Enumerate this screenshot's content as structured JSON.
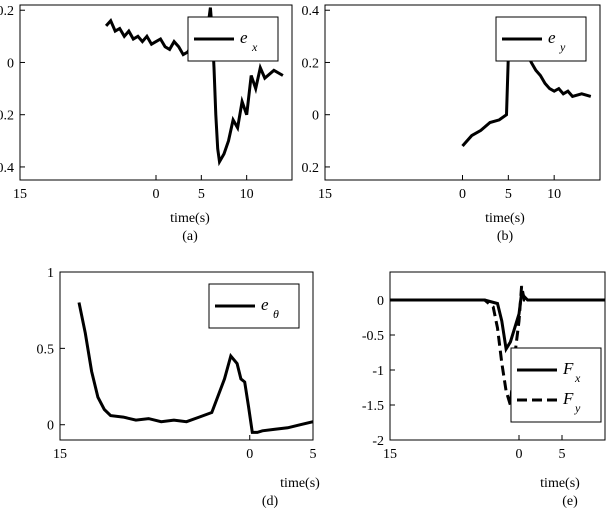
{
  "chart_data": [
    {
      "id": "a",
      "type": "line",
      "caption": "(a)",
      "xlabel": "time(s)",
      "ylabel": "",
      "xlim": [
        -15,
        15
      ],
      "ylim": [
        -0.45,
        0.22
      ],
      "xticks": [
        -15,
        0,
        5,
        10
      ],
      "xtick_labels": [
        "15",
        "0",
        "5",
        "10"
      ],
      "yticks": [
        0.2,
        0,
        -0.2,
        -0.4
      ],
      "ytick_labels": [
        "0.2",
        "0",
        "0.2",
        "0.4"
      ],
      "legend": {
        "position": "top-right",
        "entries": [
          {
            "label": "e",
            "sub": "x"
          }
        ]
      },
      "series": [
        {
          "name": "e_x",
          "color": "#000000",
          "style": "solid",
          "x": [
            -5.5,
            -5,
            -4.5,
            -4,
            -3.5,
            -3,
            -2.5,
            -2,
            -1.5,
            -1,
            -0.5,
            0,
            0.5,
            1,
            1.5,
            2,
            2.5,
            3,
            3.5,
            4,
            4.5,
            5,
            5.5,
            6,
            6.2,
            6.4,
            6.6,
            6.8,
            7,
            7.5,
            8,
            8.5,
            9,
            9.5,
            10,
            10.5,
            11,
            11.5,
            12,
            13,
            14
          ],
          "y": [
            0.14,
            0.16,
            0.12,
            0.13,
            0.1,
            0.12,
            0.09,
            0.1,
            0.08,
            0.1,
            0.07,
            0.08,
            0.09,
            0.06,
            0.05,
            0.08,
            0.06,
            0.03,
            0.04,
            0.07,
            0.09,
            0.11,
            0.08,
            0.21,
            0.12,
            -0.02,
            -0.2,
            -0.33,
            -0.38,
            -0.35,
            -0.3,
            -0.22,
            -0.25,
            -0.15,
            -0.2,
            -0.05,
            -0.1,
            -0.02,
            -0.06,
            -0.03,
            -0.05
          ]
        }
      ]
    },
    {
      "id": "b",
      "type": "line",
      "caption": "(b)",
      "xlabel": "time(s)",
      "ylabel": "",
      "xlim": [
        -15,
        15
      ],
      "ylim": [
        -0.25,
        0.42
      ],
      "xticks": [
        -15,
        0,
        5,
        10
      ],
      "xtick_labels": [
        "15",
        "0",
        "5",
        "10"
      ],
      "yticks": [
        0.4,
        0.2,
        0,
        -0.2
      ],
      "ytick_labels": [
        "0.4",
        "0.2",
        "0",
        "0.2"
      ],
      "legend": {
        "position": "top-right",
        "entries": [
          {
            "label": "e",
            "sub": "y"
          }
        ]
      },
      "series": [
        {
          "name": "e_y",
          "color": "#000000",
          "style": "solid",
          "x": [
            0,
            1,
            2,
            3,
            4,
            4.8,
            5,
            5.5,
            6,
            6.5,
            7,
            7.5,
            8,
            8.5,
            9,
            9.5,
            10,
            10.5,
            11,
            11.5,
            12,
            13,
            14
          ],
          "y": [
            -0.12,
            -0.08,
            -0.06,
            -0.03,
            -0.02,
            0.0,
            0.22,
            0.28,
            0.26,
            0.22,
            0.24,
            0.2,
            0.17,
            0.15,
            0.12,
            0.1,
            0.09,
            0.1,
            0.08,
            0.09,
            0.07,
            0.08,
            0.07
          ]
        }
      ]
    },
    {
      "id": "d",
      "type": "line",
      "caption": "(d)",
      "xlabel": "time(s)",
      "ylabel": "",
      "xlim": [
        -15,
        5
      ],
      "ylim": [
        -0.1,
        1.0
      ],
      "xticks": [
        -15,
        0,
        5
      ],
      "xtick_labels": [
        "15",
        "0",
        "5"
      ],
      "yticks": [
        1,
        0.5,
        0
      ],
      "ytick_labels": [
        "1",
        "0.5",
        "0"
      ],
      "legend": {
        "position": "top-right",
        "entries": [
          {
            "label": "e",
            "sub": "θ"
          }
        ]
      },
      "series": [
        {
          "name": "e_theta",
          "color": "#000000",
          "style": "solid",
          "x": [
            -13.5,
            -13,
            -12.5,
            -12,
            -11.5,
            -11,
            -10,
            -9,
            -8,
            -7,
            -6,
            -5,
            -4,
            -3,
            -2,
            -1.5,
            -1,
            -0.7,
            -0.4,
            -0.1,
            0.2,
            0.6,
            1,
            2,
            3,
            4,
            5
          ],
          "y": [
            0.8,
            0.6,
            0.35,
            0.18,
            0.1,
            0.06,
            0.05,
            0.03,
            0.04,
            0.02,
            0.03,
            0.02,
            0.05,
            0.08,
            0.3,
            0.45,
            0.4,
            0.3,
            0.28,
            0.12,
            -0.05,
            -0.05,
            -0.04,
            -0.03,
            -0.02,
            0.0,
            0.02
          ]
        }
      ]
    },
    {
      "id": "e",
      "type": "line",
      "caption": "(e)",
      "xlabel": "time(s)",
      "ylabel": "",
      "xlim": [
        -15,
        10
      ],
      "ylim": [
        -2,
        0.4
      ],
      "xticks": [
        -15,
        0,
        5
      ],
      "xtick_labels": [
        "15",
        "0",
        "5"
      ],
      "yticks": [
        0,
        -0.5,
        -1,
        -1.5,
        -2
      ],
      "ytick_labels": [
        "0",
        "-0.5",
        "-1",
        "-1.5",
        "-2"
      ],
      "legend": {
        "position": "bottom-right",
        "entries": [
          {
            "label": "F",
            "sub": "x"
          },
          {
            "label": "F",
            "sub": "y"
          }
        ]
      },
      "series": [
        {
          "name": "F_x",
          "color": "#000000",
          "style": "solid",
          "x": [
            -15,
            -4,
            -2.5,
            -2,
            -1.5,
            -1,
            -0.5,
            0,
            0.3,
            0.6,
            1,
            2,
            4,
            10
          ],
          "y": [
            0,
            0,
            -0.05,
            -0.3,
            -0.7,
            -0.6,
            -0.4,
            -0.2,
            0.1,
            0.05,
            0,
            0,
            0,
            0
          ]
        },
        {
          "name": "F_y",
          "color": "#000000",
          "style": "dashed",
          "x": [
            -15,
            -4,
            -3,
            -2.5,
            -2,
            -1.5,
            -1,
            -0.5,
            0,
            0.3,
            0.6,
            1,
            2,
            4,
            10
          ],
          "y": [
            0,
            0,
            -0.1,
            -0.4,
            -0.9,
            -1.3,
            -1.5,
            -0.8,
            -0.3,
            0.2,
            0.0,
            0,
            0,
            0,
            0
          ]
        }
      ]
    }
  ]
}
